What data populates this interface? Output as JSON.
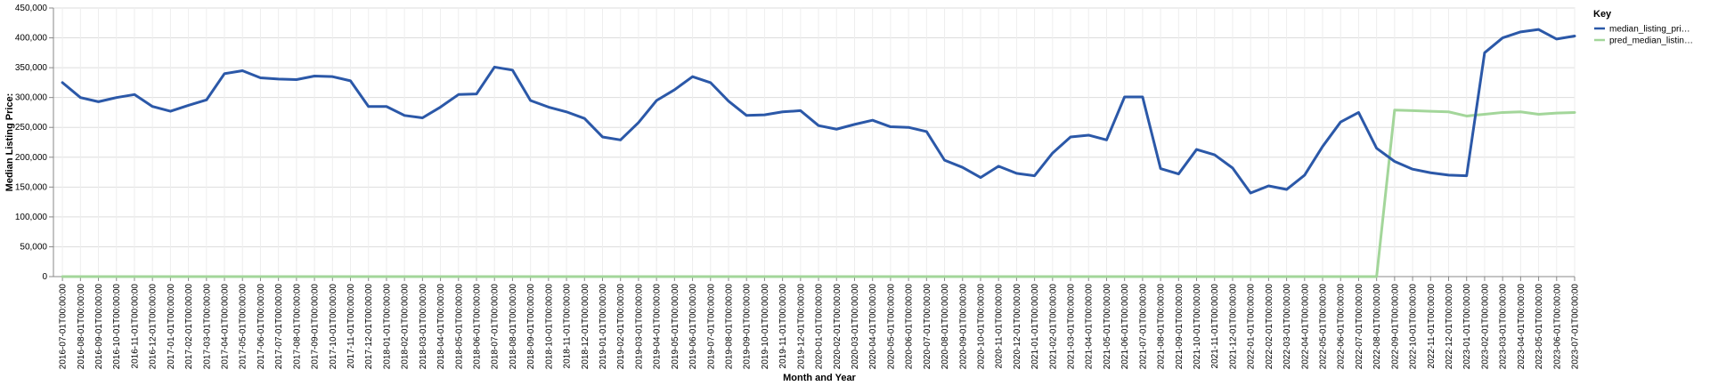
{
  "chart_data": {
    "type": "line",
    "title": "",
    "xlabel": "Month and Year",
    "ylabel": "Median Listing Price:",
    "ylim": [
      0,
      450000
    ],
    "yticks": [
      0,
      50000,
      100000,
      150000,
      200000,
      250000,
      300000,
      350000,
      400000,
      450000
    ],
    "ytick_labels": [
      "0",
      "50,000",
      "100,000",
      "150,000",
      "200,000",
      "250,000",
      "300,000",
      "350,000",
      "400,000",
      "450,000"
    ],
    "grid": true,
    "legend": {
      "title": "Key",
      "placement": "right",
      "entries": [
        "median_listing_pri…",
        "pred_median_listin…"
      ]
    },
    "x": [
      "2016-07-01T00:00:00",
      "2016-08-01T00:00:00",
      "2016-09-01T00:00:00",
      "2016-10-01T00:00:00",
      "2016-11-01T00:00:00",
      "2016-12-01T00:00:00",
      "2017-01-01T00:00:00",
      "2017-02-01T00:00:00",
      "2017-03-01T00:00:00",
      "2017-04-01T00:00:00",
      "2017-05-01T00:00:00",
      "2017-06-01T00:00:00",
      "2017-07-01T00:00:00",
      "2017-08-01T00:00:00",
      "2017-09-01T00:00:00",
      "2017-10-01T00:00:00",
      "2017-11-01T00:00:00",
      "2017-12-01T00:00:00",
      "2018-01-01T00:00:00",
      "2018-02-01T00:00:00",
      "2018-03-01T00:00:00",
      "2018-04-01T00:00:00",
      "2018-05-01T00:00:00",
      "2018-06-01T00:00:00",
      "2018-07-01T00:00:00",
      "2018-08-01T00:00:00",
      "2018-09-01T00:00:00",
      "2018-10-01T00:00:00",
      "2018-11-01T00:00:00",
      "2018-12-01T00:00:00",
      "2019-01-01T00:00:00",
      "2019-02-01T00:00:00",
      "2019-03-01T00:00:00",
      "2019-04-01T00:00:00",
      "2019-05-01T00:00:00",
      "2019-06-01T00:00:00",
      "2019-07-01T00:00:00",
      "2019-08-01T00:00:00",
      "2019-09-01T00:00:00",
      "2019-10-01T00:00:00",
      "2019-11-01T00:00:00",
      "2019-12-01T00:00:00",
      "2020-01-01T00:00:00",
      "2020-02-01T00:00:00",
      "2020-03-01T00:00:00",
      "2020-04-01T00:00:00",
      "2020-05-01T00:00:00",
      "2020-06-01T00:00:00",
      "2020-07-01T00:00:00",
      "2020-08-01T00:00:00",
      "2020-09-01T00:00:00",
      "2020-10-01T00:00:00",
      "2020-11-01T00:00:00",
      "2020-12-01T00:00:00",
      "2021-01-01T00:00:00",
      "2021-02-01T00:00:00",
      "2021-03-01T00:00:00",
      "2021-04-01T00:00:00",
      "2021-05-01T00:00:00",
      "2021-06-01T00:00:00",
      "2021-07-01T00:00:00",
      "2021-08-01T00:00:00",
      "2021-09-01T00:00:00",
      "2021-10-01T00:00:00",
      "2021-11-01T00:00:00",
      "2021-12-01T00:00:00",
      "2022-01-01T00:00:00",
      "2022-02-01T00:00:00",
      "2022-03-01T00:00:00",
      "2022-04-01T00:00:00",
      "2022-05-01T00:00:00",
      "2022-06-01T00:00:00",
      "2022-07-01T00:00:00",
      "2022-08-01T00:00:00",
      "2022-09-01T00:00:00",
      "2022-10-01T00:00:00",
      "2022-11-01T00:00:00",
      "2022-12-01T00:00:00",
      "2023-01-01T00:00:00",
      "2023-02-01T00:00:00",
      "2023-03-01T00:00:00",
      "2023-04-01T00:00:00",
      "2023-05-01T00:00:00",
      "2023-06-01T00:00:00",
      "2023-07-01T00:00:00"
    ],
    "series": [
      {
        "name": "median_listing_pri…",
        "color": "#2b58a8",
        "values": [
          325000,
          300000,
          293000,
          300000,
          305000,
          285000,
          277000,
          287000,
          296000,
          340000,
          345000,
          333000,
          331000,
          330000,
          336000,
          335000,
          328000,
          285000,
          285000,
          270000,
          266000,
          284000,
          305000,
          306000,
          351000,
          346000,
          295000,
          284000,
          276000,
          265000,
          234000,
          229000,
          258000,
          295000,
          313000,
          335000,
          325000,
          294000,
          270000,
          271000,
          276000,
          278000,
          253000,
          247000,
          255000,
          262000,
          251000,
          250000,
          243000,
          195000,
          183000,
          166000,
          185000,
          173000,
          169000,
          207000,
          234000,
          237000,
          229000,
          301000,
          301000,
          181000,
          172000,
          213000,
          204000,
          182000,
          140000,
          152000,
          146000,
          170000,
          218000,
          259000,
          275000,
          215000,
          193000,
          180000,
          174000,
          170000,
          169000,
          375000,
          400000,
          410000,
          414000,
          398000,
          403000
        ]
      },
      {
        "name": "pred_median_listin…",
        "color": "#a3d69a",
        "values": [
          0,
          0,
          0,
          0,
          0,
          0,
          0,
          0,
          0,
          0,
          0,
          0,
          0,
          0,
          0,
          0,
          0,
          0,
          0,
          0,
          0,
          0,
          0,
          0,
          0,
          0,
          0,
          0,
          0,
          0,
          0,
          0,
          0,
          0,
          0,
          0,
          0,
          0,
          0,
          0,
          0,
          0,
          0,
          0,
          0,
          0,
          0,
          0,
          0,
          0,
          0,
          0,
          0,
          0,
          0,
          0,
          0,
          0,
          0,
          0,
          0,
          0,
          0,
          0,
          0,
          0,
          0,
          0,
          0,
          0,
          0,
          0,
          0,
          0,
          279000,
          278000,
          277000,
          276000,
          269000,
          272000,
          275000,
          276000,
          272000,
          274000,
          275000
        ]
      }
    ]
  }
}
